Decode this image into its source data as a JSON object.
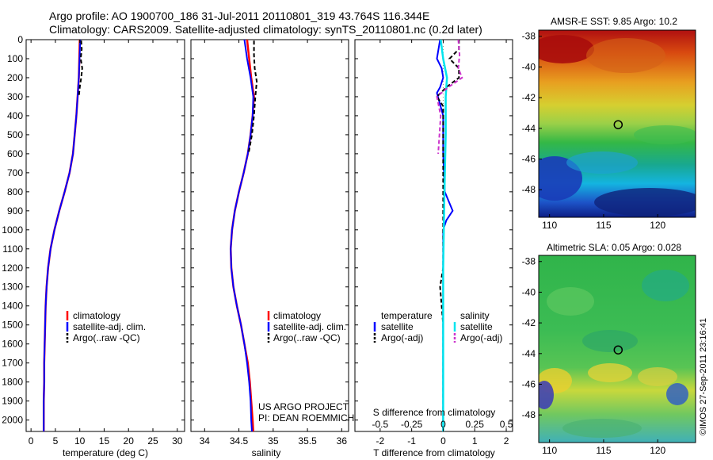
{
  "header": {
    "line1": "Argo profile: AO 1900700_186 31-Jul-2011 20110801_319 43.764S 116.344E",
    "line2": "Climatology: CARS2009. Satellite-adjusted climatology: synTS_20110801.nc (0.2d later)"
  },
  "colors": {
    "climatology": "#ff0000",
    "satellite": "#0000ff",
    "argo": "#000000",
    "sal_satellite": "#00e5ee",
    "sal_argo": "#cc33cc"
  },
  "depth_axis": {
    "ticks": [
      0,
      100,
      200,
      300,
      400,
      500,
      600,
      700,
      800,
      900,
      1000,
      1100,
      1200,
      1300,
      1400,
      1500,
      1600,
      1700,
      1800,
      1900,
      2000
    ],
    "range": [
      0,
      2060
    ]
  },
  "chart_data": [
    {
      "type": "line",
      "id": "temperature",
      "xlabel": "temperature (deg C)",
      "xlim": [
        -1,
        31.5
      ],
      "xticks": [
        0,
        5,
        10,
        15,
        20,
        25,
        30
      ],
      "ylabel": "depth",
      "series": [
        {
          "name": "climatology",
          "depth": [
            0,
            200,
            400,
            600,
            700,
            800,
            900,
            1000,
            1100,
            1200,
            1300,
            1400,
            1500,
            1600,
            1700,
            1800,
            1900,
            2000,
            2060
          ],
          "values": [
            10.0,
            9.8,
            9.3,
            8.6,
            7.9,
            6.9,
            5.8,
            4.8,
            4.0,
            3.5,
            3.2,
            3.0,
            2.9,
            2.8,
            2.7,
            2.7,
            2.6,
            2.6,
            2.6
          ]
        },
        {
          "name": "satellite-adj. clim.",
          "depth": [
            0,
            200,
            400,
            600,
            700,
            800,
            900,
            1000,
            1100,
            1200,
            1300,
            1400,
            1500,
            1600,
            1700,
            1800,
            1900,
            2000,
            2060
          ],
          "values": [
            10.1,
            9.8,
            9.3,
            8.6,
            7.9,
            6.9,
            5.8,
            4.8,
            4.0,
            3.5,
            3.2,
            3.0,
            2.9,
            2.8,
            2.7,
            2.7,
            2.6,
            2.6,
            2.6
          ]
        },
        {
          "name": "Argo(..raw -QC)",
          "depth": [
            5,
            50,
            100,
            150,
            200,
            250,
            300
          ],
          "values": [
            10.3,
            10.4,
            10.2,
            10.5,
            10.3,
            10.0,
            9.8
          ]
        }
      ],
      "legend": [
        "climatology",
        "satellite-adj. clim.",
        "Argo(..raw -QC)"
      ]
    },
    {
      "type": "line",
      "id": "salinity",
      "xlabel": "salinity",
      "xlim": [
        33.8,
        36.1
      ],
      "xticks": [
        34,
        34.5,
        35,
        35.5,
        36
      ],
      "ylabel": "depth",
      "series": [
        {
          "name": "climatology",
          "depth": [
            0,
            100,
            200,
            300,
            400,
            500,
            600,
            700,
            800,
            900,
            1000,
            1100,
            1200,
            1300,
            1400,
            1500,
            1600,
            1700,
            1800,
            1900,
            2000,
            2060
          ],
          "values": [
            34.62,
            34.65,
            34.68,
            34.72,
            34.7,
            34.67,
            34.63,
            34.57,
            34.5,
            34.44,
            34.4,
            34.38,
            34.39,
            34.42,
            34.47,
            34.53,
            34.58,
            34.63,
            34.66,
            34.68,
            34.7,
            34.71
          ]
        },
        {
          "name": "satellite-adj. clim.",
          "depth": [
            0,
            100,
            200,
            300,
            400,
            500,
            600,
            700,
            800,
            900,
            1000,
            1100,
            1200,
            1300,
            1400,
            1500,
            1600,
            1700,
            1800,
            1900,
            2000,
            2060
          ],
          "values": [
            34.58,
            34.62,
            34.67,
            34.71,
            34.7,
            34.67,
            34.63,
            34.57,
            34.5,
            34.44,
            34.4,
            34.38,
            34.39,
            34.42,
            34.47,
            34.53,
            34.58,
            34.62,
            34.65,
            34.67,
            34.68,
            34.69
          ]
        },
        {
          "name": "Argo(..raw -QC)",
          "depth": [
            5,
            80,
            150,
            220,
            300,
            400,
            500,
            600
          ],
          "values": [
            34.72,
            34.72,
            34.73,
            34.76,
            34.74,
            34.72,
            34.69,
            34.64
          ]
        }
      ],
      "legend": [
        "climatology",
        "satellite-adj. clim.",
        "Argo(..raw -QC)"
      ],
      "annotation": [
        "US ARGO PROJECT",
        "PI: DEAN ROEMMICH"
      ]
    },
    {
      "type": "line",
      "id": "difference",
      "xlabel_top": "S difference from climatology",
      "xlabel": "T difference from climatology",
      "t_xlim": [
        -2.8,
        2.2
      ],
      "t_xticks": [
        -2,
        -1,
        0,
        1,
        2
      ],
      "s_xticks": [
        -0.5,
        -0.25,
        0,
        0.25,
        0.5
      ],
      "s_to_t_factor": 4,
      "series": [
        {
          "name": "temperature satellite",
          "kind": "T",
          "depth": [
            0,
            50,
            100,
            150,
            200,
            250,
            280,
            400,
            600,
            800,
            900,
            950,
            1000,
            1400,
            2060
          ],
          "values": [
            -0.1,
            -0.15,
            -0.2,
            -0.05,
            0.0,
            -0.1,
            -0.2,
            0.0,
            0.0,
            0.05,
            0.3,
            0.1,
            0.0,
            0.0,
            0.0
          ]
        },
        {
          "name": "temperature Argo(-adj)",
          "kind": "T",
          "depth": [
            0,
            50,
            100,
            150,
            200,
            250,
            300,
            350,
            400,
            1200,
            1300,
            1400,
            1500,
            1600,
            2060
          ],
          "values": [
            0.5,
            0.5,
            0.2,
            0.5,
            0.5,
            0.1,
            -0.2,
            0.0,
            0.0,
            0.0,
            -0.1,
            -0.05,
            0.0,
            0.0,
            0.0
          ]
        },
        {
          "name": "salinity satellite",
          "kind": "S",
          "depth": [
            0,
            100,
            200,
            300,
            500,
            800,
            1200,
            1600,
            2060
          ],
          "values": [
            -0.02,
            0.0,
            0.03,
            0.02,
            0.02,
            0.01,
            0.0,
            0.0,
            0.0
          ]
        },
        {
          "name": "salinity Argo(-adj)",
          "kind": "S",
          "depth": [
            0,
            80,
            150,
            200,
            250,
            300,
            400,
            500,
            600
          ],
          "values": [
            0.12,
            0.13,
            0.12,
            0.15,
            0.04,
            -0.05,
            -0.02,
            -0.03,
            -0.04
          ]
        }
      ],
      "legend_headers": [
        "temperature",
        "salinity"
      ],
      "legend_items": [
        "satellite",
        "Argo(-adj)",
        "satellite",
        "Argo(-adj)"
      ]
    }
  ],
  "maps": [
    {
      "id": "sst",
      "title": "AMSR-E SST: 9.85 Argo: 10.2",
      "xticks": [
        110,
        115,
        120
      ],
      "yticks": [
        -38,
        -40,
        -42,
        -44,
        -46,
        -48
      ],
      "lon_range": [
        109,
        123.5
      ],
      "lat_range": [
        -49.8,
        -37.6
      ],
      "marker": [
        116.344,
        -43.764
      ]
    },
    {
      "id": "sla",
      "title": "Altimetric SLA: 0.05 Argo: 0.028",
      "xticks": [
        110,
        115,
        120
      ],
      "yticks": [
        -38,
        -40,
        -42,
        -44,
        -46,
        -48
      ],
      "lon_range": [
        109,
        123.5
      ],
      "lat_range": [
        -49.8,
        -37.6
      ],
      "marker": [
        116.344,
        -43.764
      ]
    }
  ],
  "credit": "©IMOS 27-Sep-2011 23:16:41"
}
